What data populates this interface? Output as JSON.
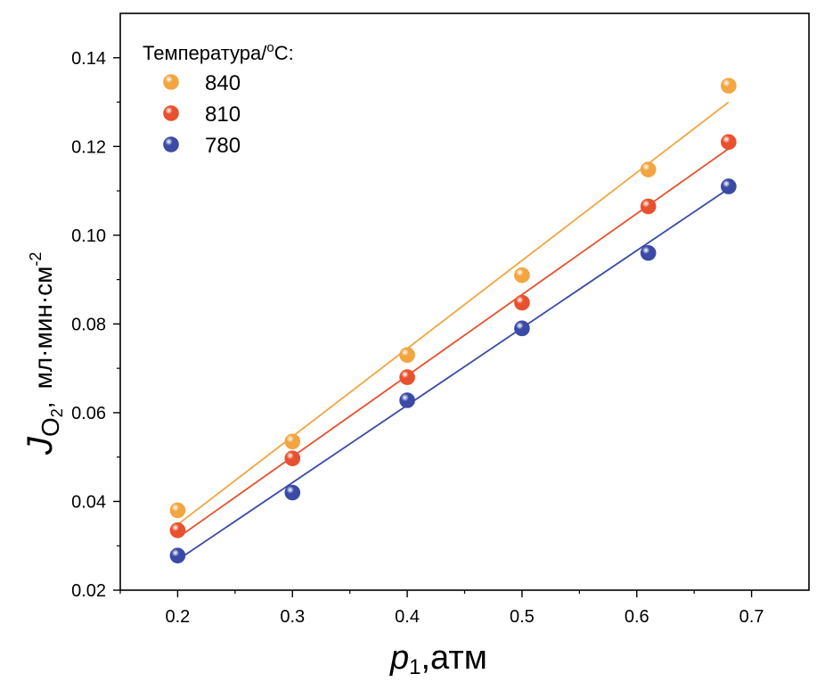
{
  "chart_data": {
    "type": "scatter",
    "xlabel": {
      "symbol": "p",
      "subscript": "1",
      "unit": ",атм"
    },
    "ylabel": {
      "symbol": "J",
      "subscript_base": "O",
      "subscript_index": "2",
      "comma": ",",
      "unit": "мл·мин·см",
      "unit_exponent": "-2"
    },
    "xlim": [
      0.15,
      0.75
    ],
    "ylim": [
      0.02,
      0.15
    ],
    "xticks": [
      0.2,
      0.3,
      0.4,
      0.5,
      0.6,
      0.7
    ],
    "xtick_labels": [
      "0.2",
      "0.3",
      "0.4",
      "0.5",
      "0.6",
      "0.7"
    ],
    "yticks": [
      0.02,
      0.04,
      0.06,
      0.08,
      0.1,
      0.12,
      0.14
    ],
    "ytick_labels": [
      "0.02",
      "0.04",
      "0.06",
      "0.08",
      "0.10",
      "0.12",
      "0.14"
    ],
    "legend": {
      "title": "Температура/",
      "title_degree": "o",
      "title_unit": "C:",
      "placement": "top-left"
    },
    "series": [
      {
        "name": "840",
        "color": "#f2a541",
        "x": [
          0.2,
          0.3,
          0.4,
          0.5,
          0.61,
          0.68
        ],
        "y": [
          0.038,
          0.0535,
          0.073,
          0.091,
          0.1148,
          0.1337
        ],
        "fit": {
          "x": [
            0.2,
            0.68
          ],
          "y": [
            0.0348,
            0.13
          ]
        }
      },
      {
        "name": "810",
        "color": "#e8512e",
        "x": [
          0.2,
          0.3,
          0.4,
          0.5,
          0.61,
          0.68
        ],
        "y": [
          0.0335,
          0.0497,
          0.068,
          0.0848,
          0.1065,
          0.121
        ],
        "fit": {
          "x": [
            0.2,
            0.68
          ],
          "y": [
            0.0318,
            0.1195
          ]
        }
      },
      {
        "name": "780",
        "color": "#3a4aa6",
        "x": [
          0.2,
          0.3,
          0.4,
          0.5,
          0.61,
          0.68
        ],
        "y": [
          0.0278,
          0.042,
          0.0628,
          0.079,
          0.096,
          0.111
        ],
        "fit": {
          "x": [
            0.2,
            0.68
          ],
          "y": [
            0.0268,
            0.1105
          ]
        }
      }
    ]
  }
}
